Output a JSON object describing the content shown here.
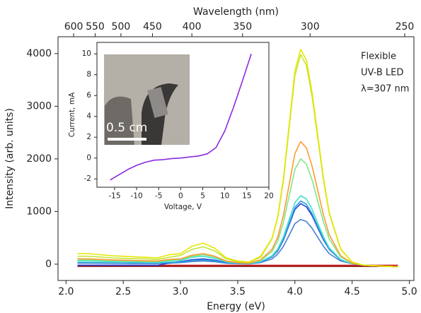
{
  "chart_data": [
    {
      "type": "line",
      "x_label": "Energy (eV)",
      "y_label": "Intensity (arb. units)",
      "x2_label": "Wavelength (nm)",
      "annotations": [
        "Flexible",
        "UV-B LED",
        "λ=307 nm"
      ],
      "xlim": [
        1.93,
        5.04
      ],
      "ylim": [
        -310,
        4320
      ],
      "xticks": [
        {
          "value": 2.0,
          "label": "2.0"
        },
        {
          "value": 2.5,
          "label": "2.5"
        },
        {
          "value": 3.0,
          "label": "3.0"
        },
        {
          "value": 3.5,
          "label": "3.5"
        },
        {
          "value": 4.0,
          "label": "4.0"
        },
        {
          "value": 4.5,
          "label": "4.5"
        },
        {
          "value": 5.0,
          "label": "5.0"
        }
      ],
      "x2ticks": [
        {
          "value": 2.0664,
          "label": "600"
        },
        {
          "value": 2.2543,
          "label": "550"
        },
        {
          "value": 2.4797,
          "label": "500"
        },
        {
          "value": 2.7552,
          "label": "450"
        },
        {
          "value": 3.0996,
          "label": "400"
        },
        {
          "value": 3.5424,
          "label": "350"
        },
        {
          "value": 4.1328,
          "label": "300"
        },
        {
          "value": 4.9594,
          "label": "250"
        }
      ],
      "yticks": [
        0,
        1000,
        2000,
        3000,
        4000
      ],
      "x": [
        2.1,
        2.2,
        2.3,
        2.4,
        2.5,
        2.6,
        2.7,
        2.8,
        2.9,
        3.0,
        3.1,
        3.2,
        3.3,
        3.4,
        3.5,
        3.6,
        3.7,
        3.8,
        3.85,
        3.9,
        3.95,
        4.0,
        4.05,
        4.1,
        4.15,
        4.2,
        4.25,
        4.3,
        4.4,
        4.5,
        4.6,
        4.7,
        4.8,
        4.9
      ],
      "series": [
        {
          "color": "#e6e600",
          "values": [
            200,
            200,
            180,
            160,
            150,
            140,
            130,
            120,
            180,
            200,
            340,
            400,
            300,
            120,
            60,
            40,
            150,
            490,
            900,
            1630,
            2650,
            3670,
            4080,
            3880,
            3260,
            2450,
            1630,
            980,
            290,
            40,
            -20,
            -30,
            -40,
            -50
          ]
        },
        {
          "color": "#c4e63a",
          "values": [
            150,
            150,
            135,
            120,
            110,
            105,
            100,
            90,
            130,
            165,
            280,
            330,
            250,
            100,
            50,
            35,
            130,
            480,
            880,
            1590,
            2590,
            3580,
            3980,
            3780,
            3180,
            2390,
            1590,
            960,
            280,
            40,
            -20,
            -30,
            -40,
            -50
          ]
        },
        {
          "color": "#ff9a2e",
          "values": [
            100,
            100,
            90,
            80,
            75,
            70,
            65,
            60,
            90,
            100,
            170,
            200,
            150,
            60,
            30,
            20,
            80,
            280,
            510,
            930,
            1510,
            2100,
            2330,
            2210,
            1860,
            1400,
            930,
            560,
            160,
            20,
            -20,
            -30,
            -40,
            -50
          ]
        },
        {
          "color": "#7fe88a",
          "values": [
            80,
            80,
            72,
            64,
            60,
            56,
            52,
            48,
            70,
            90,
            150,
            180,
            135,
            55,
            27,
            18,
            70,
            240,
            440,
            800,
            1300,
            1800,
            2000,
            1900,
            1600,
            1200,
            800,
            480,
            140,
            20,
            -20,
            -30,
            -40,
            -50
          ]
        },
        {
          "color": "#40e0d0",
          "values": [
            60,
            60,
            54,
            48,
            45,
            42,
            39,
            36,
            55,
            75,
            130,
            150,
            110,
            45,
            22,
            15,
            50,
            160,
            290,
            520,
            850,
            1170,
            1300,
            1240,
            1040,
            780,
            520,
            310,
            90,
            10,
            -20,
            -30,
            -40,
            -50
          ]
        },
        {
          "color": "#2e9ed8",
          "values": [
            30,
            30,
            27,
            24,
            22,
            21,
            20,
            18,
            30,
            40,
            70,
            80,
            60,
            24,
            12,
            8,
            40,
            140,
            260,
            480,
            780,
            1080,
            1200,
            1140,
            960,
            720,
            480,
            290,
            80,
            10,
            -20,
            -30,
            -40,
            -50
          ]
        },
        {
          "color": "#2040e0",
          "values": [
            -20,
            -20,
            -20,
            -20,
            -20,
            -20,
            -20,
            -20,
            20,
            50,
            85,
            100,
            75,
            30,
            15,
            10,
            40,
            140,
            250,
            460,
            750,
            1040,
            1150,
            1090,
            920,
            690,
            460,
            280,
            80,
            10,
            -20,
            -30,
            -40,
            -50
          ]
        },
        {
          "color": "#4a7fd0",
          "values": [
            20,
            20,
            18,
            16,
            15,
            14,
            13,
            12,
            20,
            30,
            50,
            60,
            45,
            18,
            9,
            6,
            30,
            100,
            190,
            340,
            550,
            770,
            850,
            810,
            680,
            510,
            340,
            200,
            60,
            10,
            -20,
            -30,
            -40,
            -50
          ]
        },
        {
          "color": "#8b0000",
          "values": [
            -40,
            -40,
            -40,
            -40,
            -40,
            -40,
            -40,
            -40,
            -40,
            -40,
            -40,
            -40,
            -40,
            -40,
            -40,
            -40,
            -40,
            -40,
            -40,
            -40,
            -40,
            -40,
            -40,
            -40,
            -40,
            -40,
            -40,
            -40,
            -40,
            -40,
            -40,
            -40,
            -40,
            -40
          ]
        },
        {
          "color": "#d02020",
          "values": [
            -20,
            -20,
            -20,
            -20,
            -20,
            -20,
            -20,
            -20,
            -20,
            -20,
            -20,
            -20,
            -20,
            -20,
            -20,
            -20,
            -20,
            -20,
            -20,
            -20,
            -20,
            -20,
            -20,
            -20,
            -20,
            -20,
            -20,
            -20,
            -20,
            -20,
            -20,
            -20,
            -20,
            -20
          ]
        }
      ]
    },
    {
      "type": "line",
      "x_label": "Voltage, V",
      "y_label": "Current, mA",
      "photo_label": "0.5 cm",
      "xlim": [
        -19,
        20
      ],
      "ylim": [
        -2.8,
        11.1
      ],
      "xticks": [
        -15,
        -10,
        -5,
        0,
        5,
        10,
        15,
        20
      ],
      "yticks": [
        -2,
        0,
        2,
        4,
        6,
        8,
        10
      ],
      "x": [
        -16,
        -14,
        -12,
        -10,
        -8,
        -6,
        -4,
        -2,
        0,
        2,
        4,
        6,
        8,
        10,
        12,
        14,
        16
      ],
      "series": [
        {
          "color": "#8a2be2",
          "values": [
            -2.1,
            -1.6,
            -1.1,
            -0.7,
            -0.4,
            -0.2,
            -0.15,
            -0.05,
            0,
            0.1,
            0.2,
            0.4,
            1.0,
            2.6,
            4.9,
            7.4,
            10.0
          ]
        }
      ]
    }
  ]
}
